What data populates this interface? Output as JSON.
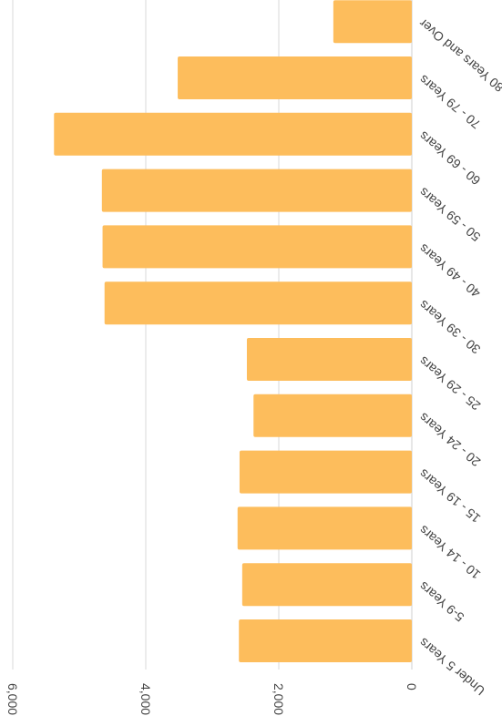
{
  "chart_data": {
    "type": "bar",
    "orientation": "horizontal",
    "categories": [
      "Under 5 Years",
      "5-9 Years",
      "10 - 14 Years",
      "15 - 19 Years",
      "20 - 24 Years",
      "25 - 29 Years",
      "30 - 39 Years",
      "40 - 49 Years",
      "50 - 59 Years",
      "60 - 69 Years",
      "70 - 79 Years",
      "80 Years and Over"
    ],
    "values": [
      2600,
      2550,
      2620,
      2590,
      2380,
      2480,
      4620,
      4650,
      4660,
      5380,
      3520,
      1180
    ],
    "xlim": [
      0,
      6000
    ],
    "ticks": [
      {
        "value": 0,
        "label": "0"
      },
      {
        "value": 2000,
        "label": "2,000"
      },
      {
        "value": 4000,
        "label": "4,000"
      },
      {
        "value": 6000,
        "label": "6,000"
      }
    ],
    "title": "",
    "xlabel": "",
    "ylabel": "",
    "grid": true,
    "bar_color": "#FDBD5C",
    "rotation": "image rotated 180 degrees"
  }
}
